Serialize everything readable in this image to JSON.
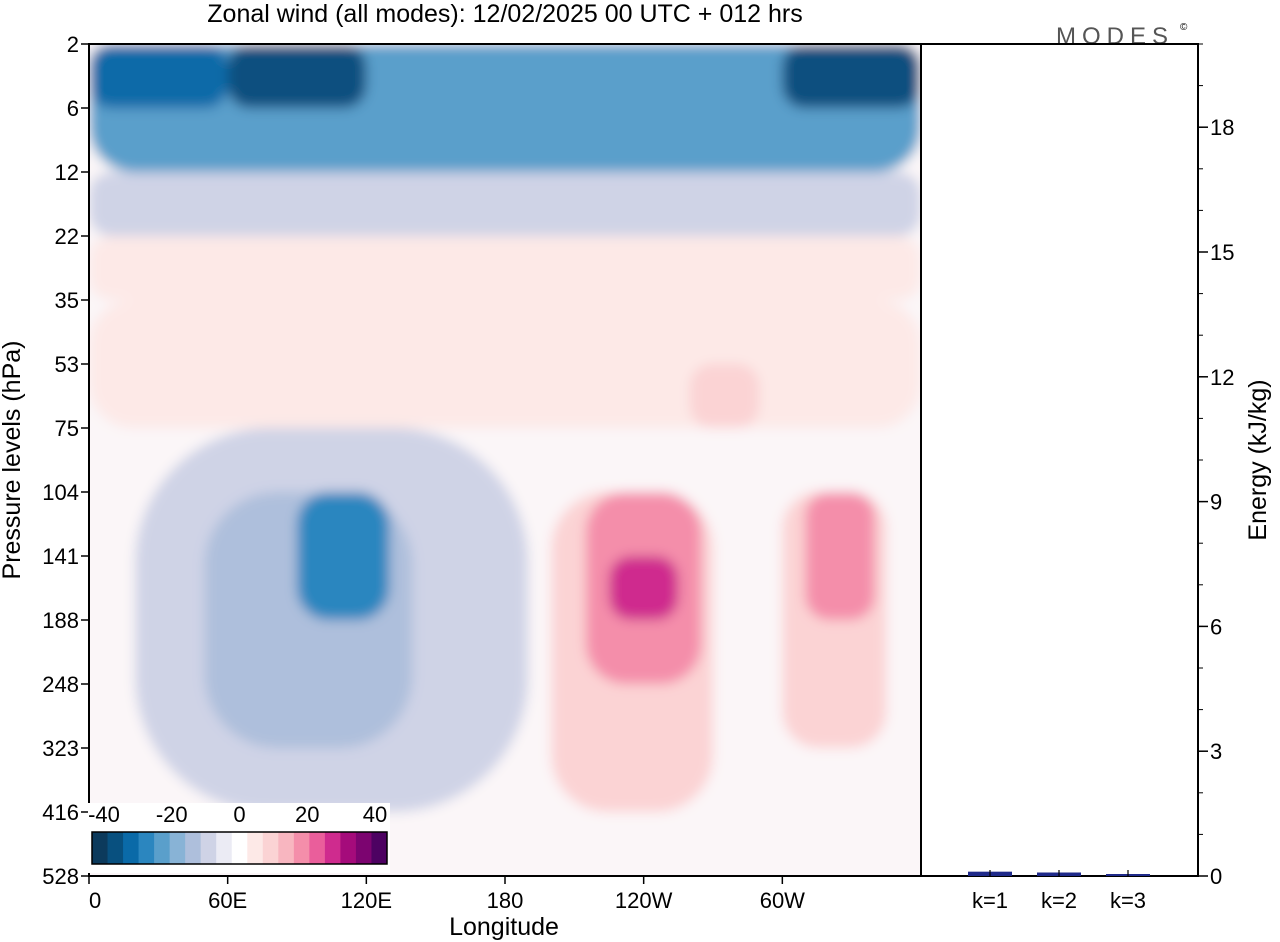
{
  "brand": {
    "name": "MODES",
    "mark": "©"
  },
  "chart_data": [
    {
      "type": "heatmap",
      "title": "Zonal wind (all modes):  12/02/2025  00 UTC  + 012 hrs",
      "xlabel": "Longitude",
      "ylabel": "Pressure levels (hPa)",
      "x_ticks": [
        "0",
        "60E",
        "120E",
        "180",
        "120W",
        "60W"
      ],
      "x_tick_degrees": [
        0,
        60,
        120,
        180,
        240,
        300
      ],
      "xlim": [
        0,
        360
      ],
      "y_ticks": [
        "2",
        "6",
        "12",
        "22",
        "35",
        "53",
        "75",
        "104",
        "141",
        "188",
        "248",
        "323",
        "416",
        "528"
      ],
      "y_scale": "model levels, top to bottom",
      "colorbar": {
        "ticks": [
          "-40",
          "-20",
          "0",
          "20",
          "40"
        ],
        "range": [
          -45,
          45
        ],
        "step": 5,
        "colors": [
          "#0c3a5c",
          "#08507f",
          "#0a6aa8",
          "#2b86bf",
          "#5a9fcb",
          "#88b3d6",
          "#aebfdc",
          "#cfd3e6",
          "#ebebf4",
          "#ffffff",
          "#fde9e7",
          "#fbd3d4",
          "#f8b6c0",
          "#f48eaa",
          "#ea5e9b",
          "#cf2b8e",
          "#a50b7b",
          "#7c0470",
          "#4d0262"
        ]
      },
      "regions": [
        {
          "lon_from": 0,
          "lon_to": 360,
          "level_from": "2",
          "level_to": "12",
          "u_ms": -25
        },
        {
          "lon_from": 0,
          "lon_to": 60,
          "level_from": "2",
          "level_to": "6",
          "u_ms": -35
        },
        {
          "lon_from": 60,
          "lon_to": 120,
          "level_from": "2",
          "level_to": "6",
          "u_ms": -40
        },
        {
          "lon_from": 300,
          "lon_to": 360,
          "level_from": "2",
          "level_to": "6",
          "u_ms": -40
        },
        {
          "lon_from": 0,
          "lon_to": 360,
          "level_from": "12",
          "level_to": "22",
          "u_ms": -10
        },
        {
          "lon_from": 0,
          "lon_to": 360,
          "level_from": "22",
          "level_to": "35",
          "u_ms": 3
        },
        {
          "lon_from": 0,
          "lon_to": 360,
          "level_from": "35",
          "level_to": "75",
          "u_ms": 7
        },
        {
          "lon_from": 260,
          "lon_to": 290,
          "level_from": "53",
          "level_to": "75",
          "u_ms": 12
        },
        {
          "lon_from": 20,
          "lon_to": 190,
          "level_from": "75",
          "level_to": "416",
          "u_ms": -8
        },
        {
          "lon_from": 50,
          "lon_to": 140,
          "level_from": "104",
          "level_to": "323",
          "u_ms": -15
        },
        {
          "lon_from": 90,
          "lon_to": 130,
          "level_from": "104",
          "level_to": "188",
          "u_ms": -28
        },
        {
          "lon_from": 200,
          "lon_to": 270,
          "level_from": "104",
          "level_to": "416",
          "u_ms": 12
        },
        {
          "lon_from": 215,
          "lon_to": 265,
          "level_from": "104",
          "level_to": "248",
          "u_ms": 22
        },
        {
          "lon_from": 225,
          "lon_to": 255,
          "level_from": "141",
          "level_to": "188",
          "u_ms": 32
        },
        {
          "lon_from": 300,
          "lon_to": 345,
          "level_from": "104",
          "level_to": "323",
          "u_ms": 12
        },
        {
          "lon_from": 310,
          "lon_to": 340,
          "level_from": "104",
          "level_to": "188",
          "u_ms": 18
        }
      ]
    },
    {
      "type": "bar",
      "categories": [
        "k=1",
        "k=2",
        "k=3"
      ],
      "values": [
        0.08,
        0.06,
        0.02
      ],
      "ylabel": "Energy (kJ/kg)",
      "y_ticks": [
        "0",
        "3",
        "6",
        "9",
        "12",
        "15",
        "18"
      ],
      "ylim": [
        0,
        20
      ],
      "color": "#1f2a8a"
    }
  ]
}
